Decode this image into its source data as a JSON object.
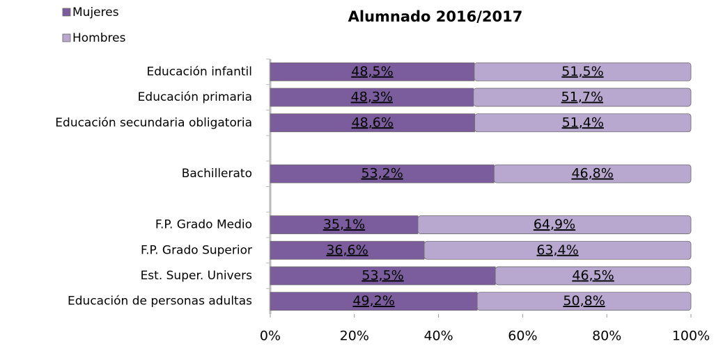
{
  "chart_data": {
    "type": "stacked-bar-horizontal",
    "title": "Alumnado 2016/2017",
    "categories": [
      "Educación infantil",
      "Educación primaria",
      "Educación secundaria obligatoria",
      null,
      "Bachillerato",
      null,
      "F.P. Grado Medio",
      "F.P. Grado Superior",
      "Est. Super. Univers",
      "Educación de personas adultas"
    ],
    "series": [
      {
        "name": "Mujeres",
        "color": "#7b5c9c",
        "values": [
          48.5,
          48.3,
          48.6,
          null,
          53.2,
          null,
          35.1,
          36.6,
          53.5,
          49.2
        ],
        "value_labels": [
          "48,5%",
          "48,3%",
          "48,6%",
          null,
          "53,2%",
          null,
          "35,1%",
          "36,6%",
          "53,5%",
          "49,2%"
        ]
      },
      {
        "name": "Hombres",
        "color": "#b8a7cf",
        "values": [
          51.5,
          51.7,
          51.4,
          null,
          46.8,
          null,
          64.9,
          63.4,
          46.5,
          50.8
        ],
        "value_labels": [
          "51,5%",
          "51,7%",
          "51,4%",
          null,
          "46,8%",
          null,
          "64,9%",
          "63,4%",
          "46,5%",
          "50,8%"
        ]
      }
    ],
    "xlim": [
      0,
      100
    ],
    "xticks": [
      {
        "value": 0,
        "label": "0%"
      },
      {
        "value": 20,
        "label": "20%"
      },
      {
        "value": 40,
        "label": "40%"
      },
      {
        "value": 60,
        "label": "60%"
      },
      {
        "value": 80,
        "label": "80%"
      },
      {
        "value": 100,
        "label": "100%"
      }
    ],
    "legend": "top-left"
  }
}
